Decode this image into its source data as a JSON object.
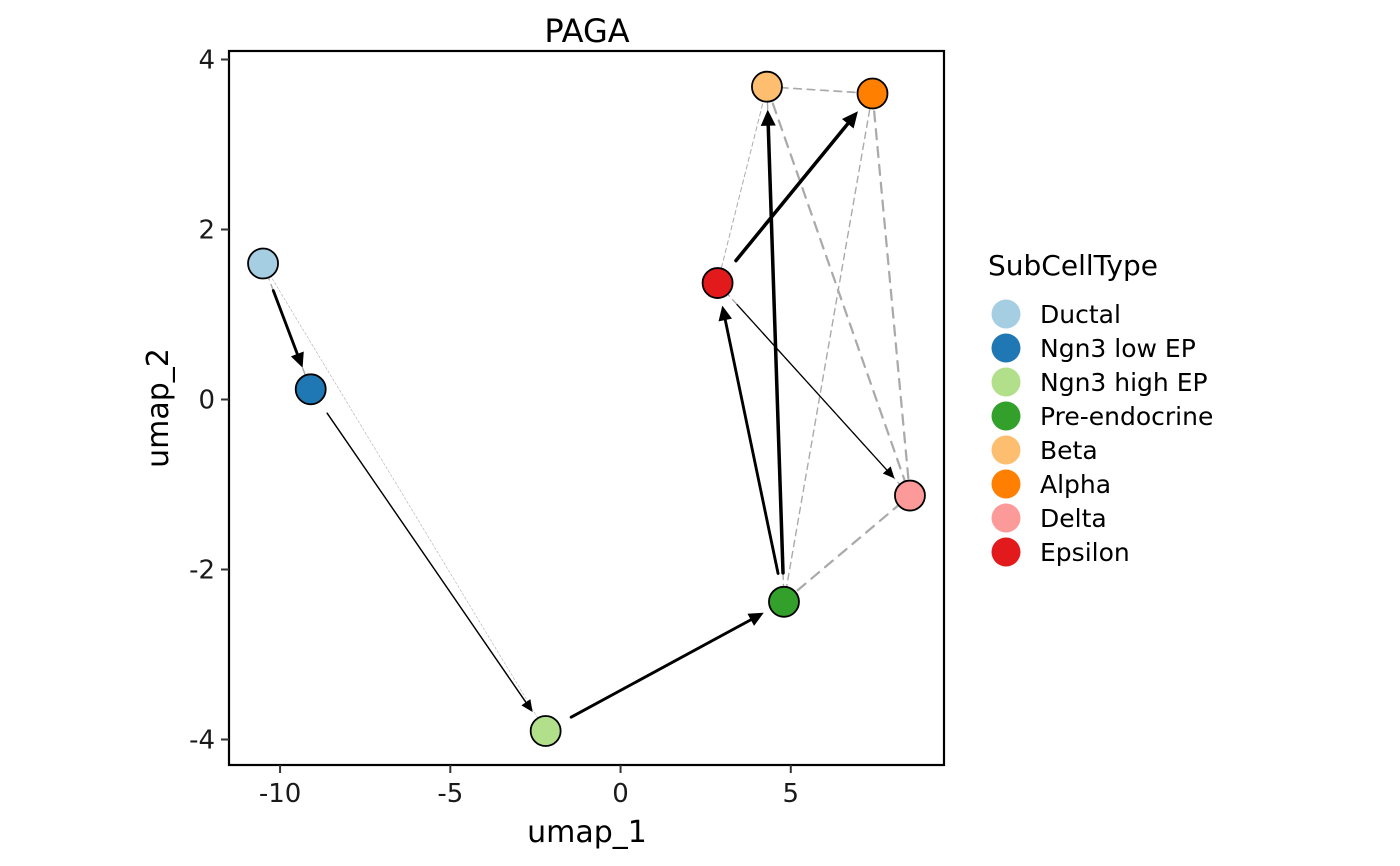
{
  "chart_data": {
    "type": "scatter",
    "title": "PAGA",
    "xlabel": "umap_1",
    "ylabel": "umap_2",
    "xlim": [
      -11.5,
      9.5
    ],
    "ylim": [
      -4.3,
      4.1
    ],
    "xticks": [
      -10,
      -5,
      0,
      5
    ],
    "xtick_labels": [
      "-10",
      "-5",
      "0",
      "5"
    ],
    "yticks": [
      -4,
      -2,
      0,
      2,
      4
    ],
    "ytick_labels": [
      "-4",
      "-2",
      "0",
      "2",
      "4"
    ],
    "grid": false,
    "legend_title": "SubCellType",
    "legend_position": "right",
    "nodes": [
      {
        "name": "Ductal",
        "x": -10.5,
        "y": 1.6,
        "color": "#A6CEE3"
      },
      {
        "name": "Ngn3 low EP",
        "x": -9.1,
        "y": 0.12,
        "color": "#1F78B4"
      },
      {
        "name": "Ngn3 high EP",
        "x": -2.2,
        "y": -3.9,
        "color": "#B2DF8A"
      },
      {
        "name": "Pre-endocrine",
        "x": 4.8,
        "y": -2.38,
        "color": "#33A02C"
      },
      {
        "name": "Beta",
        "x": 4.3,
        "y": 3.68,
        "color": "#FDBF6F"
      },
      {
        "name": "Alpha",
        "x": 7.4,
        "y": 3.6,
        "color": "#FF7F00"
      },
      {
        "name": "Delta",
        "x": 8.5,
        "y": -1.13,
        "color": "#FB9A99"
      },
      {
        "name": "Epsilon",
        "x": 2.85,
        "y": 1.37,
        "color": "#E31A1C"
      }
    ],
    "dashed_edges": [
      {
        "from": "Ductal",
        "to": "Ngn3 low EP",
        "weight": 1
      },
      {
        "from": "Ductal",
        "to": "Ngn3 high EP",
        "weight": 0.4
      },
      {
        "from": "Pre-endocrine",
        "to": "Delta",
        "weight": 1.6
      },
      {
        "from": "Pre-endocrine",
        "to": "Alpha",
        "weight": 1
      },
      {
        "from": "Pre-endocrine",
        "to": "Beta",
        "weight": 1
      },
      {
        "from": "Beta",
        "to": "Alpha",
        "weight": 1.2
      },
      {
        "from": "Beta",
        "to": "Delta",
        "weight": 1.6
      },
      {
        "from": "Alpha",
        "to": "Delta",
        "weight": 1.6
      },
      {
        "from": "Epsilon",
        "to": "Beta",
        "weight": 0.7
      },
      {
        "from": "Epsilon",
        "to": "Delta",
        "weight": 1
      }
    ],
    "arrows": [
      {
        "from": "Ductal",
        "to": "Ngn3 low EP",
        "weight": 1.8
      },
      {
        "from": "Ngn3 low EP",
        "to": "Ngn3 high EP",
        "weight": 0.9
      },
      {
        "from": "Ngn3 high EP",
        "to": "Pre-endocrine",
        "weight": 1.8
      },
      {
        "from": "Pre-endocrine",
        "to": "Epsilon",
        "weight": 1.8
      },
      {
        "from": "Pre-endocrine",
        "to": "Beta",
        "weight": 2.2
      },
      {
        "from": "Epsilon",
        "to": "Alpha",
        "weight": 2.2
      },
      {
        "from": "Epsilon",
        "to": "Delta",
        "weight": 0.8
      }
    ]
  }
}
